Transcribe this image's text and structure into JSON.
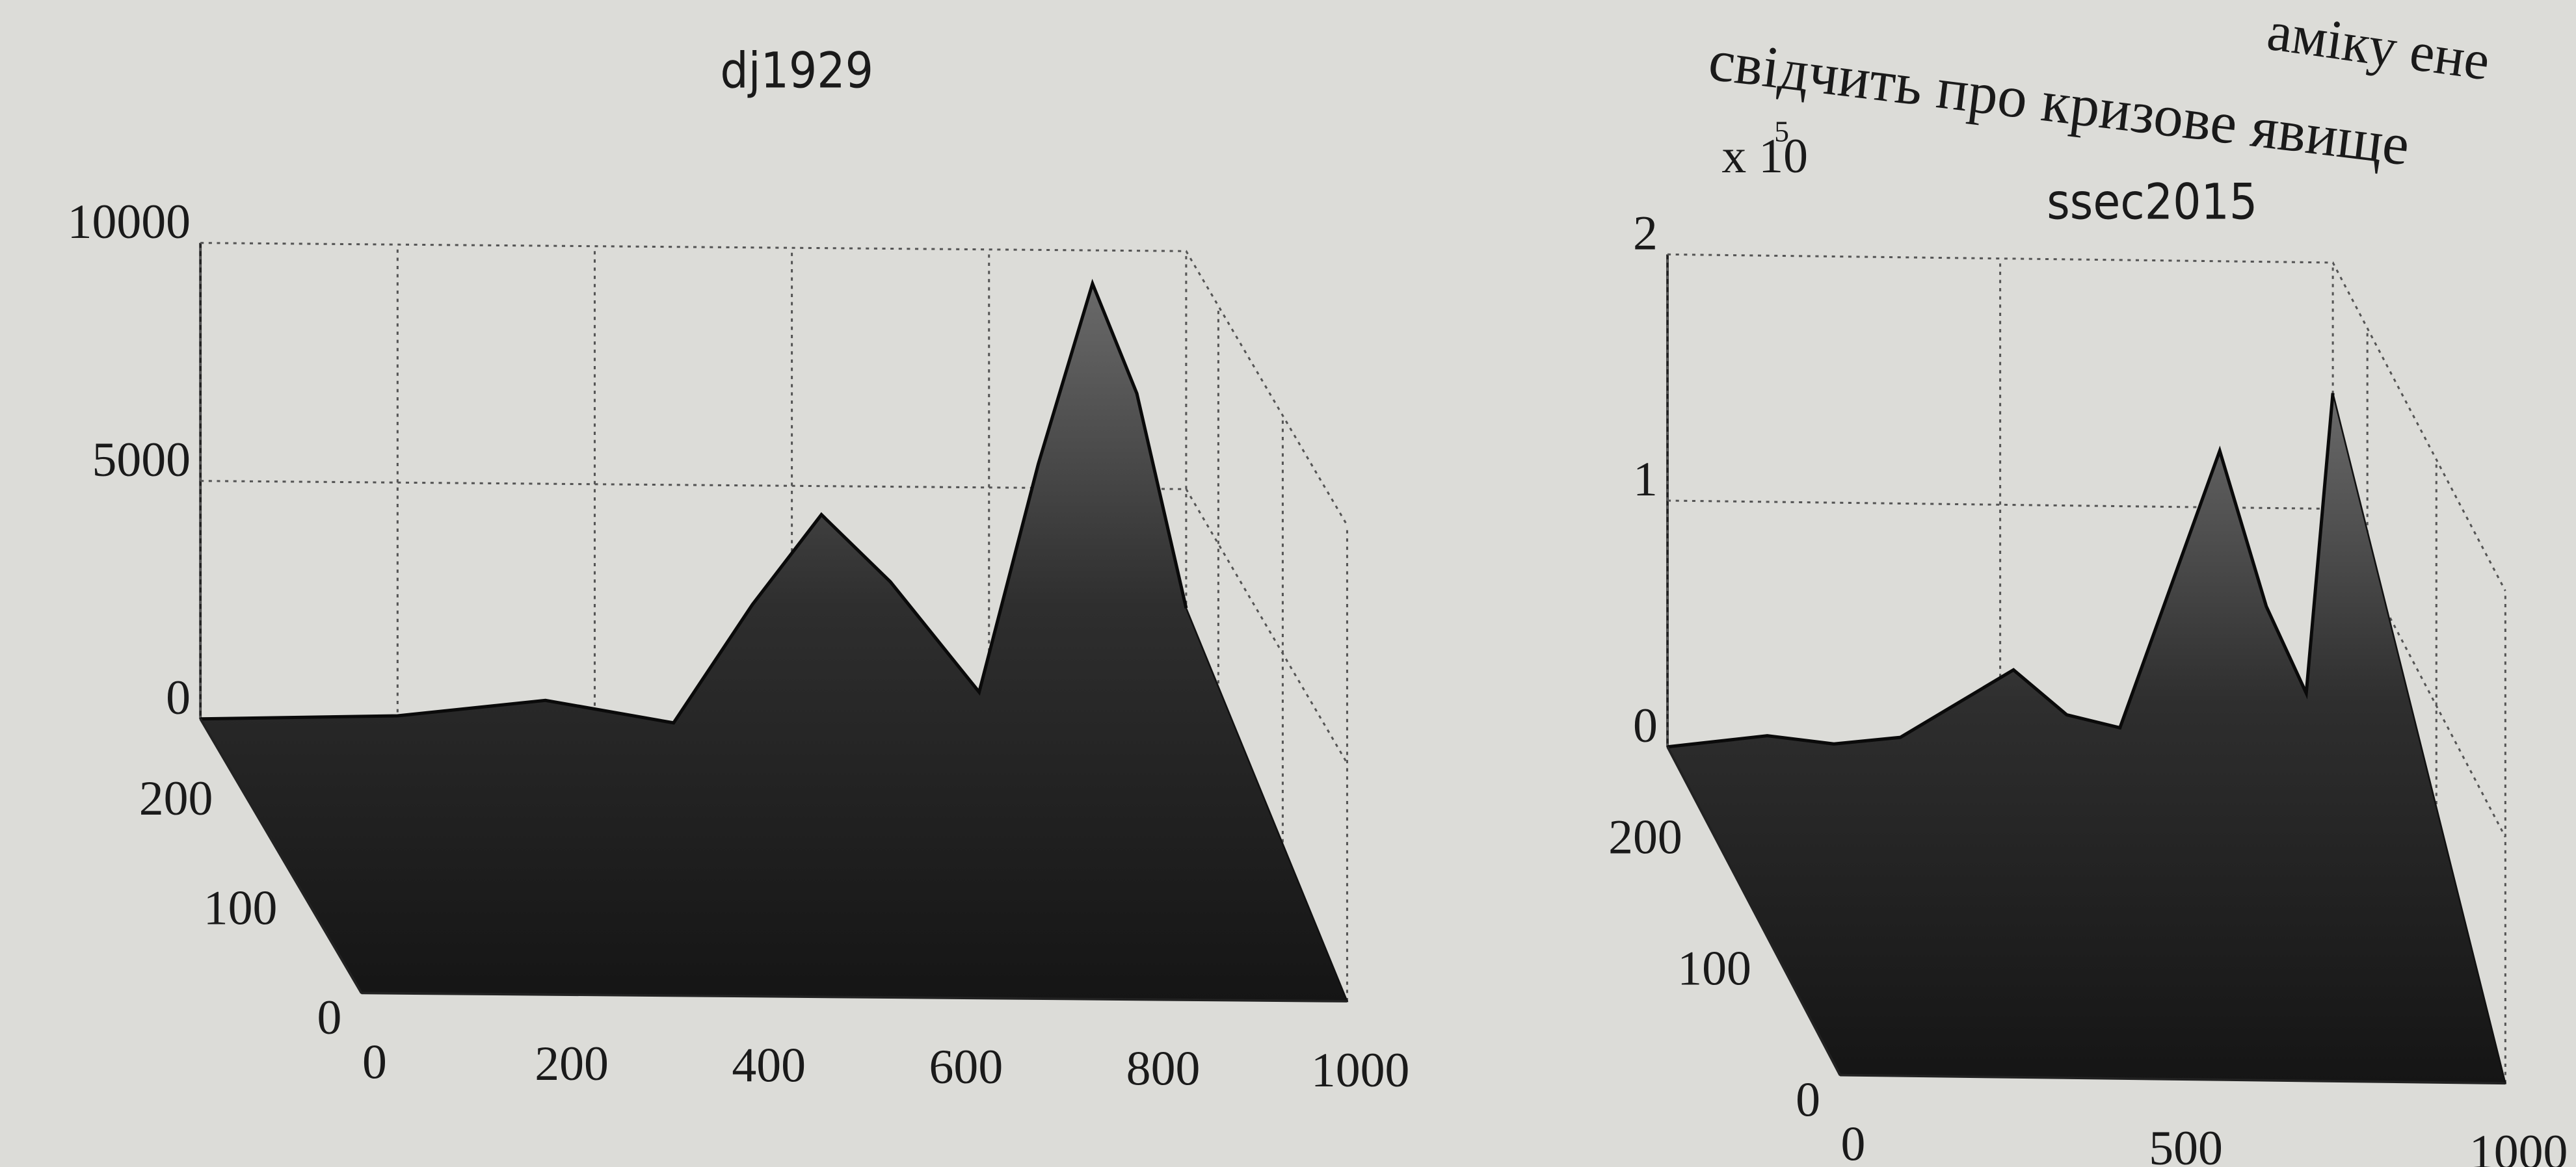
{
  "page_text": {
    "line1": "амiку ене",
    "line2": "свідчить про кризове явище"
  },
  "chart_data": [
    {
      "type": "surface",
      "title": "dj1929",
      "xlim": [
        0,
        1000
      ],
      "ylim": [
        0,
        250
      ],
      "zlim": [
        0,
        10000
      ],
      "xticks": [
        0,
        200,
        400,
        600,
        800,
        1000
      ],
      "yticks": [
        0,
        100,
        200
      ],
      "zticks": [
        0,
        5000,
        10000
      ],
      "ridge": {
        "x": [
          0,
          200,
          350,
          480,
          560,
          630,
          700,
          790,
          850,
          905,
          950,
          1000
        ],
        "z": [
          0,
          100,
          450,
          0,
          2500,
          4400,
          3000,
          700,
          5500,
          9300,
          7000,
          2500
        ]
      }
    },
    {
      "type": "surface",
      "title": "ssec2015",
      "z_multiplier": {
        "base": "x 10",
        "exponent": "5"
      },
      "xlim": [
        0,
        1000
      ],
      "ylim": [
        0,
        250
      ],
      "zlim": [
        0,
        2
      ],
      "xticks": [
        0,
        500,
        1000
      ],
      "yticks": [
        0,
        100,
        200
      ],
      "zticks": [
        0,
        1,
        2
      ],
      "ridge": {
        "x": [
          0,
          150,
          250,
          350,
          520,
          600,
          680,
          830,
          900,
          960,
          1000
        ],
        "z": [
          0,
          0.05,
          0.02,
          0.05,
          0.33,
          0.15,
          0.1,
          1.23,
          0.6,
          0.25,
          1.47
        ]
      }
    }
  ]
}
